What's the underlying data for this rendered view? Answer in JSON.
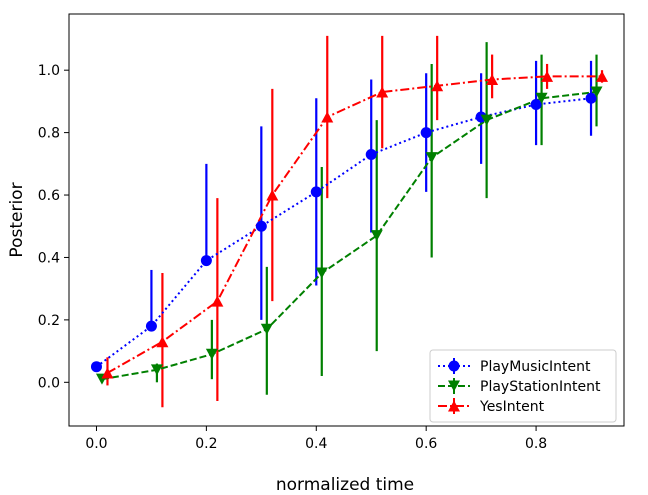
{
  "chart_data": {
    "type": "line",
    "title": "",
    "xlabel": "normalized time",
    "ylabel": "Posterior",
    "xlim": [
      -0.05,
      0.96
    ],
    "ylim": [
      -0.14,
      1.18
    ],
    "xticks": [
      "0.0",
      "0.2",
      "0.4",
      "0.6",
      "0.8"
    ],
    "yticks": [
      "0.0",
      "0.2",
      "0.4",
      "0.6",
      "0.8",
      "1.0"
    ],
    "grid": false,
    "legend_position": "lower-right",
    "series": [
      {
        "name": "PlayMusicIntent",
        "color": "#0000ff",
        "linestyle": "dotted",
        "marker": "circle",
        "x": [
          0.0,
          0.1,
          0.2,
          0.3,
          0.4,
          0.5,
          0.6,
          0.7,
          0.8,
          0.9
        ],
        "y": [
          0.05,
          0.18,
          0.39,
          0.5,
          0.61,
          0.73,
          0.8,
          0.85,
          0.89,
          0.91
        ],
        "err_low": [
          0.05,
          0.18,
          0.39,
          0.2,
          0.31,
          0.48,
          0.61,
          0.7,
          0.76,
          0.79
        ],
        "err_high": [
          0.05,
          0.36,
          0.7,
          0.82,
          0.91,
          0.97,
          0.99,
          0.99,
          1.03,
          1.03
        ]
      },
      {
        "name": "PlayStationIntent",
        "color": "#008000",
        "linestyle": "dashed",
        "marker": "triangle-down",
        "x": [
          0.01,
          0.11,
          0.21,
          0.31,
          0.41,
          0.51,
          0.61,
          0.71,
          0.81,
          0.91
        ],
        "y": [
          0.01,
          0.04,
          0.09,
          0.17,
          0.35,
          0.47,
          0.72,
          0.84,
          0.91,
          0.93
        ],
        "err_low": [
          0.01,
          0.0,
          0.01,
          -0.04,
          0.02,
          0.1,
          0.4,
          0.59,
          0.76,
          0.82
        ],
        "err_high": [
          0.01,
          0.06,
          0.2,
          0.37,
          0.69,
          0.84,
          1.02,
          1.09,
          1.05,
          1.05
        ]
      },
      {
        "name": "YesIntent",
        "color": "#ff0000",
        "linestyle": "dashdot",
        "marker": "triangle-up",
        "x": [
          0.02,
          0.12,
          0.22,
          0.32,
          0.42,
          0.52,
          0.62,
          0.72,
          0.82,
          0.92
        ],
        "y": [
          0.03,
          0.13,
          0.26,
          0.6,
          0.85,
          0.93,
          0.95,
          0.97,
          0.98,
          0.98
        ],
        "err_low": [
          -0.01,
          -0.08,
          -0.06,
          0.26,
          0.59,
          0.75,
          0.84,
          0.91,
          0.94,
          0.96
        ],
        "err_high": [
          0.08,
          0.35,
          0.59,
          0.94,
          1.11,
          1.11,
          1.11,
          1.05,
          1.02,
          1.0
        ]
      }
    ]
  }
}
